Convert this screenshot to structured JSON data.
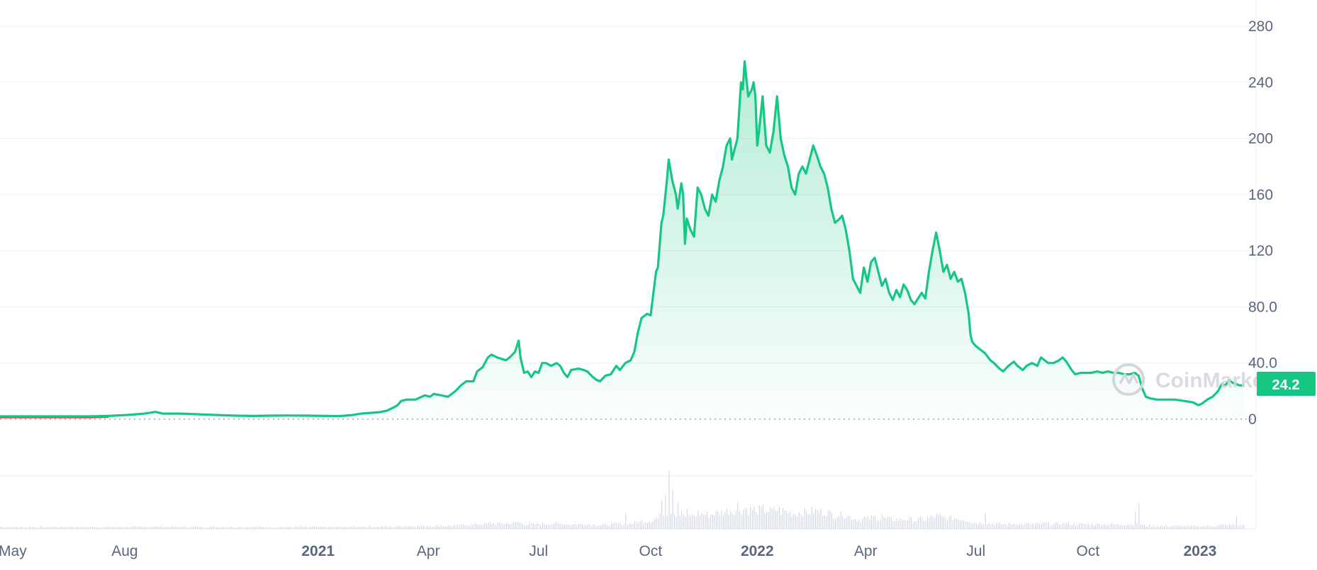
{
  "chart_data": {
    "type": "area",
    "series": [
      {
        "values": [
          [
            0,
            2
          ],
          [
            10,
            2
          ],
          [
            20,
            2
          ],
          [
            30,
            2
          ],
          [
            40,
            2
          ],
          [
            50,
            2
          ],
          [
            60,
            2.3
          ],
          [
            70,
            3
          ],
          [
            80,
            4
          ],
          [
            86,
            5.2
          ],
          [
            90,
            4
          ],
          [
            100,
            4
          ],
          [
            110,
            3.5
          ],
          [
            120,
            3
          ],
          [
            130,
            2.5
          ],
          [
            140,
            2.3
          ],
          [
            150,
            2.5
          ],
          [
            160,
            2.6
          ],
          [
            170,
            2.5
          ],
          [
            180,
            2.3
          ],
          [
            188,
            2.2
          ],
          [
            195,
            3
          ],
          [
            200,
            4
          ],
          [
            205,
            4.5
          ],
          [
            210,
            5
          ],
          [
            214,
            6
          ],
          [
            218,
            8.5
          ],
          [
            220,
            10
          ],
          [
            222,
            13
          ],
          [
            225,
            14
          ],
          [
            230,
            14
          ],
          [
            235,
            17
          ],
          [
            238,
            16
          ],
          [
            240,
            18
          ],
          [
            244,
            17
          ],
          [
            248,
            16
          ],
          [
            250,
            18
          ],
          [
            252,
            20
          ],
          [
            255,
            24
          ],
          [
            258,
            27
          ],
          [
            262,
            27
          ],
          [
            264,
            34
          ],
          [
            267,
            37
          ],
          [
            270,
            44
          ],
          [
            272,
            46
          ],
          [
            275,
            44
          ],
          [
            280,
            42
          ],
          [
            282,
            44
          ],
          [
            285,
            48
          ],
          [
            287,
            56
          ],
          [
            288,
            44
          ],
          [
            290,
            33
          ],
          [
            292,
            34
          ],
          [
            294,
            30
          ],
          [
            296,
            34
          ],
          [
            298,
            33
          ],
          [
            300,
            40
          ],
          [
            302,
            40
          ],
          [
            305,
            38
          ],
          [
            308,
            40
          ],
          [
            310,
            38
          ],
          [
            312,
            33
          ],
          [
            314,
            30
          ],
          [
            316,
            35
          ],
          [
            320,
            36
          ],
          [
            323,
            35
          ],
          [
            325,
            34
          ],
          [
            328,
            30
          ],
          [
            330,
            28
          ],
          [
            332,
            27
          ],
          [
            335,
            31
          ],
          [
            338,
            32
          ],
          [
            341,
            38
          ],
          [
            343,
            35
          ],
          [
            346,
            40
          ],
          [
            349,
            42
          ],
          [
            351,
            48
          ],
          [
            353,
            62
          ],
          [
            355,
            72
          ],
          [
            358,
            75
          ],
          [
            360,
            74
          ],
          [
            363,
            105
          ],
          [
            364,
            108
          ],
          [
            366,
            140
          ],
          [
            367,
            145
          ],
          [
            369,
            170
          ],
          [
            370,
            185
          ],
          [
            372,
            170
          ],
          [
            374,
            160
          ],
          [
            375,
            150
          ],
          [
            377,
            168
          ],
          [
            378,
            160
          ],
          [
            379,
            125
          ],
          [
            380,
            143
          ],
          [
            382,
            135
          ],
          [
            384,
            130
          ],
          [
            386,
            165
          ],
          [
            388,
            160
          ],
          [
            390,
            150
          ],
          [
            392,
            145
          ],
          [
            394,
            160
          ],
          [
            396,
            155
          ],
          [
            398,
            170
          ],
          [
            400,
            180
          ],
          [
            402,
            195
          ],
          [
            404,
            200
          ],
          [
            405,
            185
          ],
          [
            406,
            190
          ],
          [
            408,
            200
          ],
          [
            410,
            240
          ],
          [
            411,
            235
          ],
          [
            412,
            255
          ],
          [
            414,
            230
          ],
          [
            416,
            235
          ],
          [
            417,
            240
          ],
          [
            418,
            230
          ],
          [
            419,
            195
          ],
          [
            420,
            205
          ],
          [
            422,
            230
          ],
          [
            424,
            195
          ],
          [
            426,
            190
          ],
          [
            428,
            205
          ],
          [
            430,
            230
          ],
          [
            432,
            200
          ],
          [
            434,
            188
          ],
          [
            436,
            180
          ],
          [
            438,
            165
          ],
          [
            440,
            160
          ],
          [
            442,
            175
          ],
          [
            444,
            180
          ],
          [
            446,
            175
          ],
          [
            448,
            185
          ],
          [
            450,
            195
          ],
          [
            452,
            188
          ],
          [
            454,
            180
          ],
          [
            456,
            175
          ],
          [
            458,
            165
          ],
          [
            460,
            150
          ],
          [
            462,
            140
          ],
          [
            464,
            142
          ],
          [
            466,
            145
          ],
          [
            468,
            135
          ],
          [
            470,
            120
          ],
          [
            472,
            100
          ],
          [
            474,
            95
          ],
          [
            476,
            90
          ],
          [
            478,
            108
          ],
          [
            480,
            98
          ],
          [
            482,
            112
          ],
          [
            484,
            115
          ],
          [
            486,
            105
          ],
          [
            488,
            95
          ],
          [
            490,
            100
          ],
          [
            492,
            90
          ],
          [
            494,
            85
          ],
          [
            496,
            92
          ],
          [
            498,
            87
          ],
          [
            500,
            96
          ],
          [
            502,
            92
          ],
          [
            504,
            85
          ],
          [
            506,
            82
          ],
          [
            508,
            86
          ],
          [
            510,
            90
          ],
          [
            512,
            86
          ],
          [
            514,
            105
          ],
          [
            516,
            120
          ],
          [
            518,
            133
          ],
          [
            520,
            120
          ],
          [
            522,
            105
          ],
          [
            524,
            110
          ],
          [
            526,
            100
          ],
          [
            528,
            105
          ],
          [
            530,
            98
          ],
          [
            532,
            100
          ],
          [
            534,
            90
          ],
          [
            536,
            75
          ],
          [
            537,
            60
          ],
          [
            538,
            55
          ],
          [
            540,
            52
          ],
          [
            542,
            50
          ],
          [
            545,
            47
          ],
          [
            548,
            42
          ],
          [
            550,
            40
          ],
          [
            553,
            36
          ],
          [
            555,
            34
          ],
          [
            558,
            38
          ],
          [
            561,
            41
          ],
          [
            563,
            38
          ],
          [
            566,
            35
          ],
          [
            568,
            38
          ],
          [
            571,
            40
          ],
          [
            574,
            38
          ],
          [
            576,
            44
          ],
          [
            578,
            42
          ],
          [
            580,
            40
          ],
          [
            583,
            40
          ],
          [
            586,
            42
          ],
          [
            588,
            44
          ],
          [
            590,
            41
          ],
          [
            593,
            35
          ],
          [
            595,
            32
          ],
          [
            598,
            33
          ],
          [
            601,
            33
          ],
          [
            604,
            33
          ],
          [
            607,
            34
          ],
          [
            610,
            33
          ],
          [
            613,
            34
          ],
          [
            616,
            33
          ],
          [
            619,
            33
          ],
          [
            622,
            32
          ],
          [
            625,
            32
          ],
          [
            628,
            33
          ],
          [
            630,
            31
          ],
          [
            632,
            22
          ],
          [
            634,
            16
          ],
          [
            636,
            15
          ],
          [
            640,
            14
          ],
          [
            645,
            14
          ],
          [
            650,
            14
          ],
          [
            655,
            13
          ],
          [
            660,
            12
          ],
          [
            663,
            10
          ],
          [
            665,
            11
          ],
          [
            668,
            14
          ],
          [
            671,
            16
          ],
          [
            674,
            20
          ],
          [
            676,
            25
          ],
          [
            678,
            24
          ],
          [
            680,
            28
          ],
          [
            682,
            26
          ],
          [
            684,
            25
          ],
          [
            686,
            24
          ],
          [
            688,
            24.2
          ]
        ]
      }
    ],
    "x_start": "2020-04-24",
    "y_ticks": [
      "0",
      "40.0",
      "80.0",
      "120",
      "160",
      "200",
      "240",
      "280"
    ],
    "ylim": [
      0,
      280
    ],
    "x_ticks": [
      {
        "label": "May",
        "day": 7,
        "bold": false
      },
      {
        "label": "Aug",
        "day": 69,
        "bold": false
      },
      {
        "label": "2021",
        "day": 176,
        "bold": true
      },
      {
        "label": "Apr",
        "day": 237,
        "bold": false
      },
      {
        "label": "Jul",
        "day": 298,
        "bold": false
      },
      {
        "label": "Oct",
        "day": 360,
        "bold": false
      },
      {
        "label": "2022",
        "day": 419,
        "bold": true
      },
      {
        "label": "Apr",
        "day": 479,
        "bold": false
      },
      {
        "label": "Jul",
        "day": 540,
        "bold": false
      },
      {
        "label": "Oct",
        "day": 602,
        "bold": false
      },
      {
        "label": "2023",
        "day": 664,
        "bold": true
      }
    ],
    "xlim": [
      0,
      695
    ],
    "current_price": "24.2",
    "grid": true,
    "line_color": "#16c784",
    "early_line_color": "#ea3943",
    "volume_color": "#cfd6e4"
  },
  "watermark": "CoinMarketCap"
}
